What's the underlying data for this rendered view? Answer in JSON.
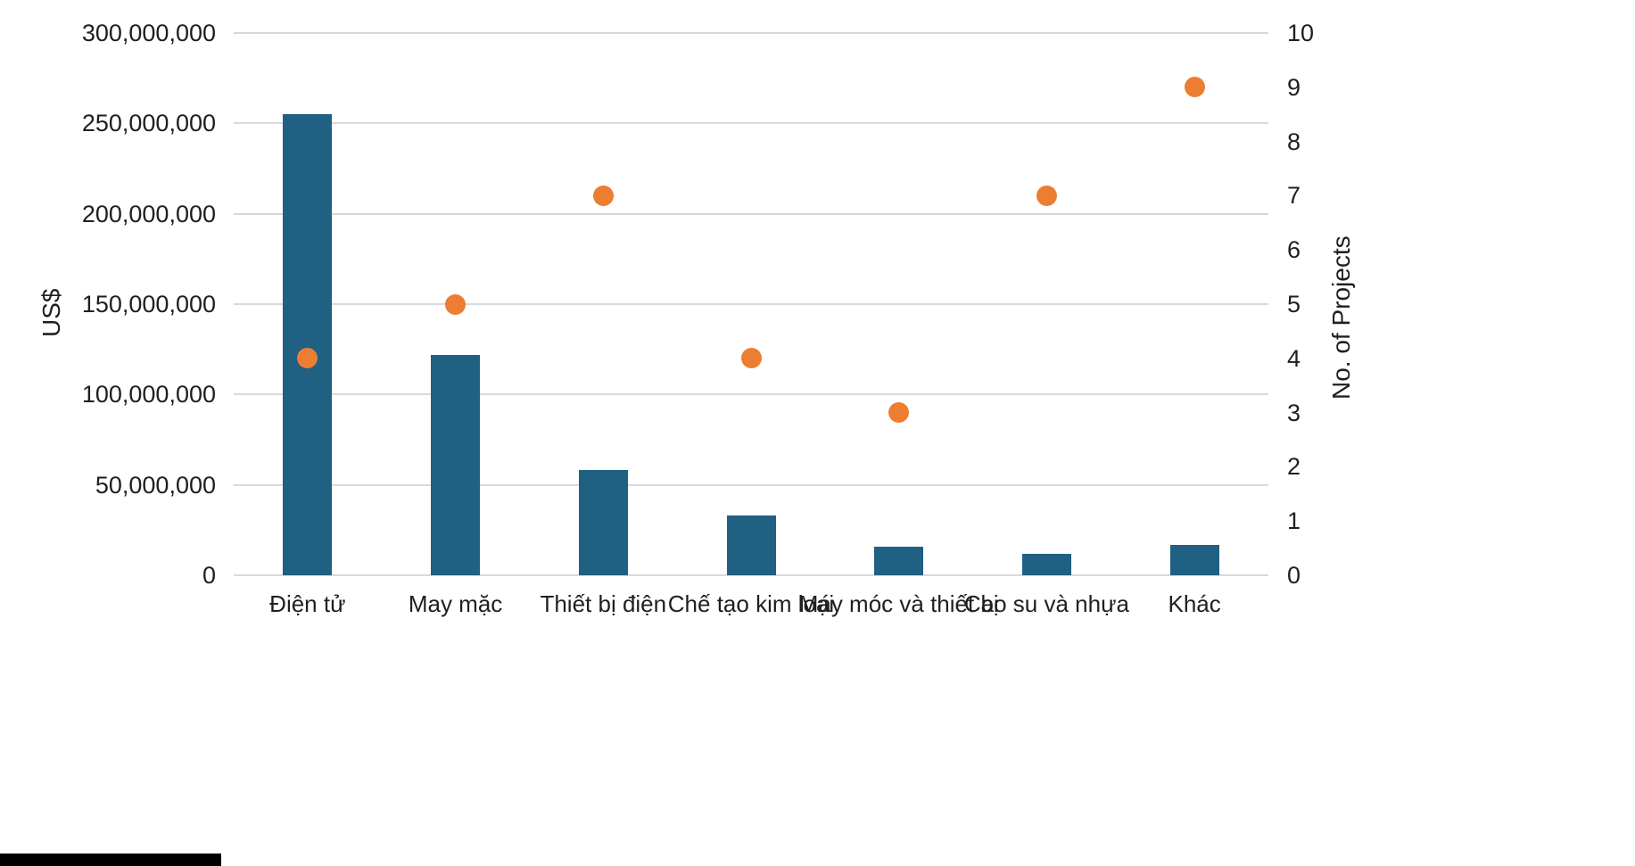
{
  "chart_data": {
    "type": "bar",
    "subtype": "combo-bar-and-scatter",
    "categories": [
      "Điện tử",
      "May mặc",
      "Thiết bị điện",
      "Chế tạo kim loại",
      "Máy móc và thiết bị",
      "Cao su và nhựa",
      "Khác"
    ],
    "series": [
      {
        "name": "US$",
        "type": "bar",
        "axis": "left",
        "color": "#1f6083",
        "values": [
          255000000,
          122000000,
          58000000,
          33000000,
          16000000,
          12000000,
          17000000
        ]
      },
      {
        "name": "No. of Projects",
        "type": "scatter",
        "axis": "right",
        "color": "#ed7d31",
        "values": [
          4,
          5,
          7,
          4,
          3,
          7,
          9
        ]
      }
    ],
    "left_axis": {
      "title": "US$",
      "min": 0,
      "max": 300000000,
      "step": 50000000,
      "tick_labels": [
        "0",
        "50,000,000",
        "100,000,000",
        "150,000,000",
        "200,000,000",
        "250,000,000",
        "300,000,000"
      ]
    },
    "right_axis": {
      "title": "No. of Projects",
      "min": 0,
      "max": 10,
      "step": 1,
      "tick_labels": [
        "0",
        "1",
        "2",
        "3",
        "4",
        "5",
        "6",
        "7",
        "8",
        "9",
        "10"
      ]
    },
    "grid": true,
    "legend": false,
    "colors": {
      "bar": "#1f6083",
      "dot": "#ed7d31",
      "gridline": "#d9d9d9",
      "text": "#1f1f1f",
      "background": "#ffffff"
    }
  }
}
